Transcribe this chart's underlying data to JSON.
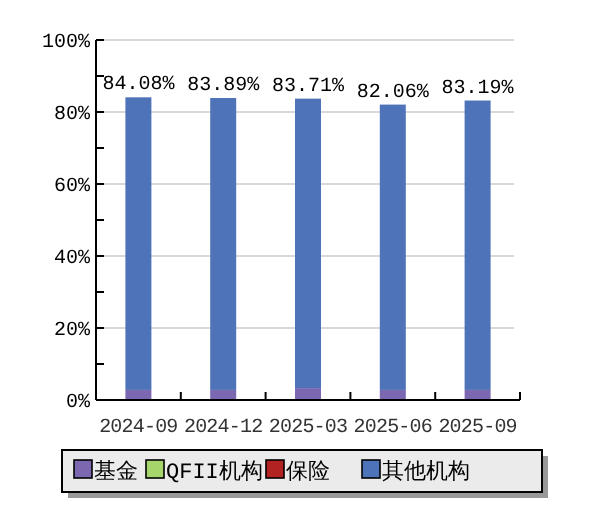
{
  "chart_data": {
    "type": "bar",
    "stacked": true,
    "categories": [
      "2024-09",
      "2024-12",
      "2025-03",
      "2025-06",
      "2025-09"
    ],
    "series": [
      {
        "name": "基金",
        "color": "#7b68b0",
        "values": [
          2.8,
          2.8,
          3.3,
          2.8,
          2.8
        ]
      },
      {
        "name": "QFII机构",
        "color": "#a6d66b",
        "values": [
          0,
          0,
          0,
          0,
          0
        ]
      },
      {
        "name": "保险",
        "color": "#b22222",
        "values": [
          0,
          0,
          0,
          0,
          0
        ]
      },
      {
        "name": "其他机构",
        "color": "#4f73b8",
        "values": [
          81.28,
          81.09,
          80.41,
          79.26,
          80.39
        ]
      }
    ],
    "totals": [
      "84.08%",
      "83.89%",
      "83.71%",
      "82.06%",
      "83.19%"
    ],
    "ylim": [
      0,
      100
    ],
    "yticks": [
      {
        "value": 0,
        "label": "0%"
      },
      {
        "value": 10,
        "label": null
      },
      {
        "value": 20,
        "label": "20%"
      },
      {
        "value": 30,
        "label": null
      },
      {
        "value": 40,
        "label": "40%"
      },
      {
        "value": 50,
        "label": null
      },
      {
        "value": 60,
        "label": "60%"
      },
      {
        "value": 70,
        "label": null
      },
      {
        "value": 80,
        "label": "80%"
      },
      {
        "value": 90,
        "label": null
      },
      {
        "value": 100,
        "label": "100%"
      }
    ],
    "grid": "y",
    "legend": "bottom"
  }
}
